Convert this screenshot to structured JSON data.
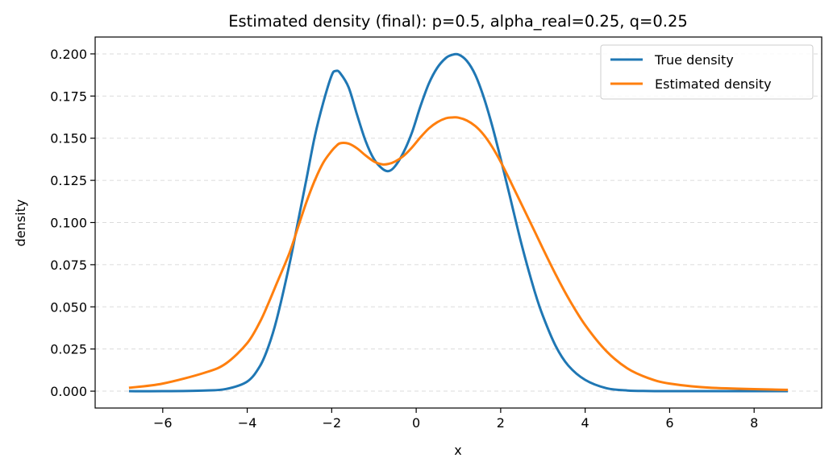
{
  "chart_data": {
    "type": "line",
    "title": "Estimated density (final): p=0.5, alpha_real=0.25, q=0.25",
    "xlabel": "x",
    "ylabel": "density",
    "xlim": [
      -7.6,
      9.6
    ],
    "ylim": [
      -0.01,
      0.21
    ],
    "xticks": [
      -6,
      -4,
      -2,
      0,
      2,
      4,
      6,
      8
    ],
    "xtick_labels": [
      "−6",
      "−4",
      "−2",
      "0",
      "2",
      "4",
      "6",
      "8"
    ],
    "yticks": [
      0.0,
      0.025,
      0.05,
      0.075,
      0.1,
      0.125,
      0.15,
      0.175,
      0.2
    ],
    "ytick_labels": [
      "0.000",
      "0.025",
      "0.050",
      "0.075",
      "0.100",
      "0.125",
      "0.150",
      "0.175",
      "0.200"
    ],
    "grid": "y-dashed",
    "legend_position": "top-right",
    "series": [
      {
        "name": "True density",
        "color": "#1f77b4",
        "x": [
          -6.8,
          -6,
          -5,
          -4.5,
          -4,
          -3.7,
          -3.5,
          -3.3,
          -3,
          -2.8,
          -2.6,
          -2.4,
          -2.2,
          -2,
          -1.9,
          -1.8,
          -1.6,
          -1.4,
          -1.2,
          -1,
          -0.8,
          -0.65,
          -0.5,
          -0.3,
          -0.1,
          0.1,
          0.3,
          0.5,
          0.7,
          0.85,
          1,
          1.2,
          1.4,
          1.6,
          1.8,
          2,
          2.2,
          2.5,
          2.8,
          3,
          3.3,
          3.6,
          4,
          4.5,
          5,
          5.5,
          6,
          7,
          8.8
        ],
        "y": [
          0.0,
          0.0,
          0.0004,
          0.0013,
          0.0057,
          0.0148,
          0.0263,
          0.0428,
          0.0753,
          0.1003,
          0.1255,
          0.1511,
          0.1711,
          0.1873,
          0.1899,
          0.1886,
          0.1802,
          0.1639,
          0.1485,
          0.1376,
          0.1319,
          0.1305,
          0.1334,
          0.1416,
          0.1534,
          0.1689,
          0.1824,
          0.1918,
          0.1975,
          0.1994,
          0.1996,
          0.1958,
          0.1875,
          0.1742,
          0.1573,
          0.1378,
          0.1174,
          0.0865,
          0.0595,
          0.0446,
          0.0269,
          0.0152,
          0.0067,
          0.0018,
          0.0004,
          0.0001,
          0.0,
          0.0,
          0.0
        ]
      },
      {
        "name": "Estimated density",
        "color": "#ff7f0e",
        "x": [
          -6.8,
          -6,
          -5,
          -4.5,
          -4,
          -3.7,
          -3.5,
          -3.3,
          -3,
          -2.8,
          -2.6,
          -2.4,
          -2.2,
          -2,
          -1.9,
          -1.8,
          -1.6,
          -1.4,
          -1.2,
          -1,
          -0.8,
          -0.65,
          -0.5,
          -0.3,
          -0.1,
          0.1,
          0.3,
          0.5,
          0.7,
          0.85,
          1,
          1.2,
          1.4,
          1.6,
          1.8,
          2,
          2.2,
          2.5,
          2.8,
          3,
          3.3,
          3.6,
          4,
          4.5,
          5,
          5.5,
          6,
          7,
          8.8
        ],
        "y": [
          0.002,
          0.0045,
          0.011,
          0.0165,
          0.0285,
          0.041,
          0.052,
          0.064,
          0.082,
          0.097,
          0.112,
          0.125,
          0.1355,
          0.1425,
          0.1452,
          0.147,
          0.1468,
          0.144,
          0.1398,
          0.1362,
          0.1345,
          0.1348,
          0.1362,
          0.1395,
          0.1445,
          0.1505,
          0.1558,
          0.1595,
          0.1618,
          0.1623,
          0.1622,
          0.1605,
          0.1572,
          0.152,
          0.1448,
          0.136,
          0.126,
          0.1105,
          0.095,
          0.0845,
          0.0693,
          0.0553,
          0.0392,
          0.0238,
          0.0135,
          0.0077,
          0.0045,
          0.002,
          0.0008
        ]
      }
    ]
  }
}
